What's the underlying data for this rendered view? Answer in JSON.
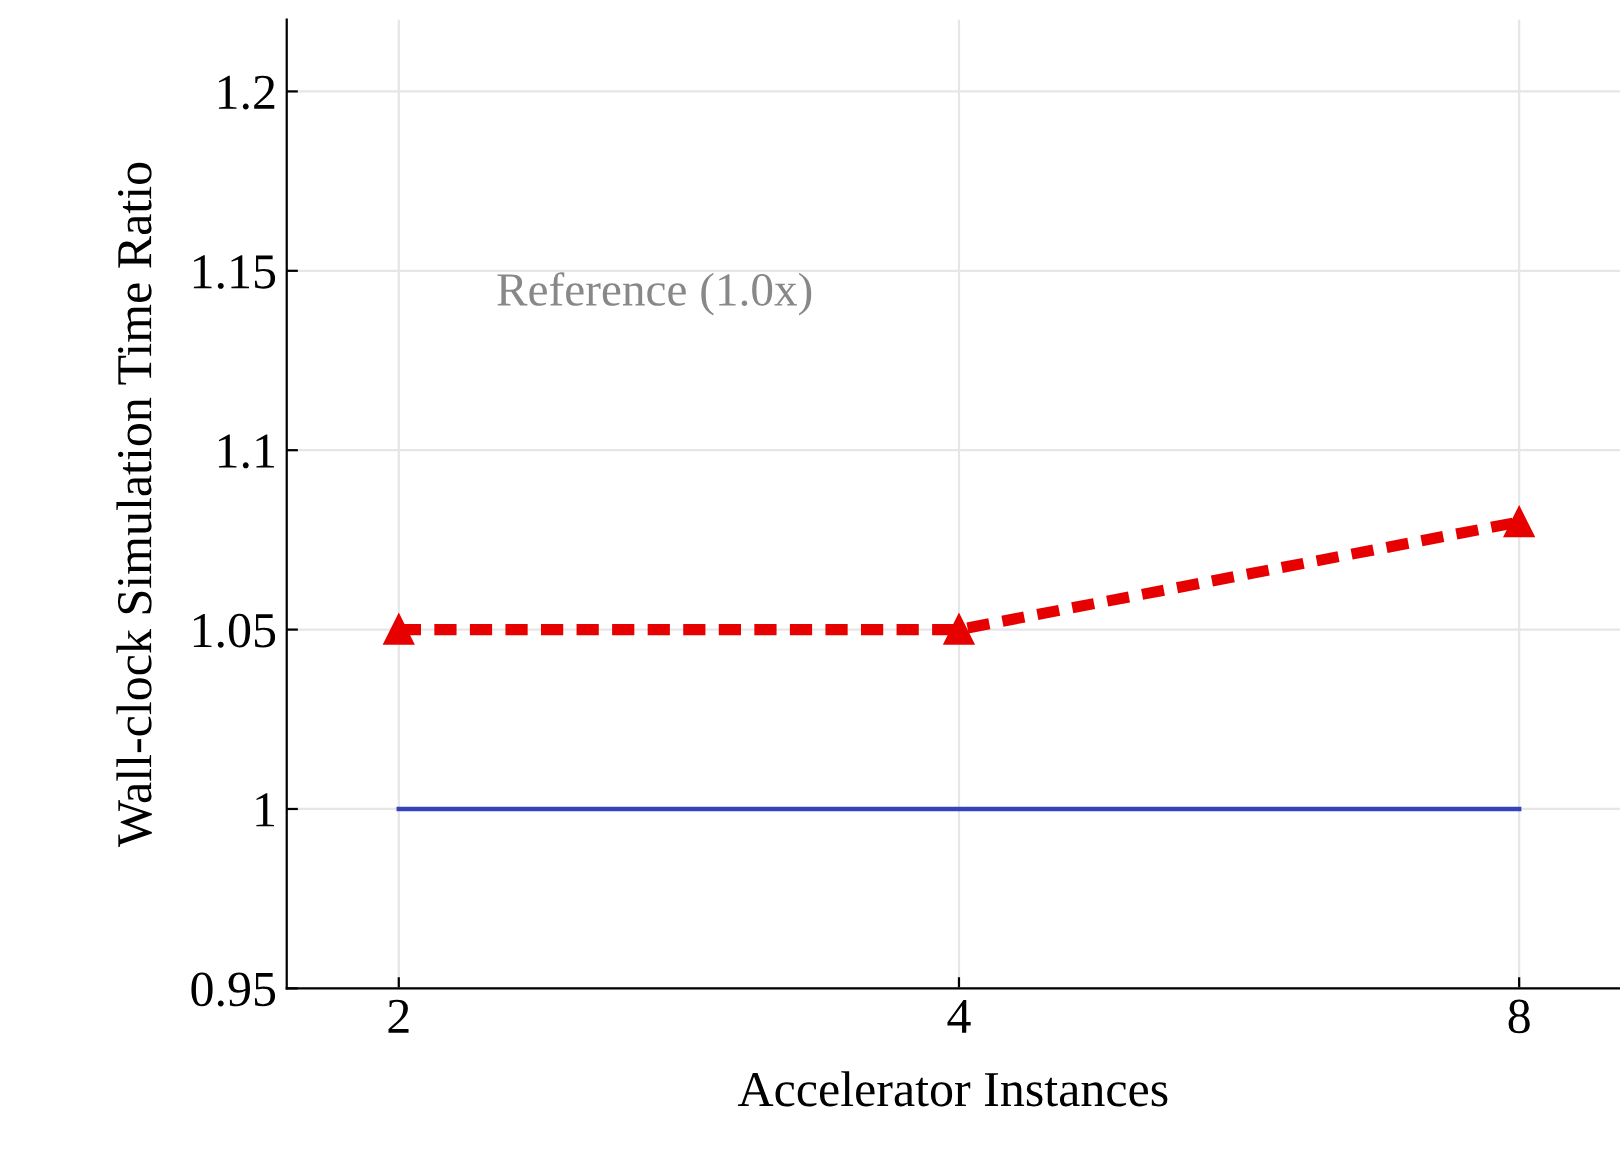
{
  "chart_data": {
    "type": "line",
    "xlabel": "Accelerator Instances",
    "ylabel": "Wall-clock Simulation Time Ratio",
    "categories": [
      "2",
      "4",
      "8"
    ],
    "series": [
      {
        "color": "#e60000",
        "values": [
          1.05,
          1.05,
          1.08
        ],
        "marker": "triangle",
        "line_style": "dashed"
      },
      {
        "color": "#3344bb",
        "values": [
          1.0,
          1.0,
          1.0
        ],
        "marker": "none",
        "line_style": "solid"
      }
    ],
    "annotations": [
      "Reference (1.0x)"
    ],
    "ylim": [
      0.95,
      1.22
    ],
    "yticks": [
      0.95,
      1,
      1.05,
      1.1,
      1.15,
      1.2
    ],
    "grid": true,
    "legend": false
  }
}
